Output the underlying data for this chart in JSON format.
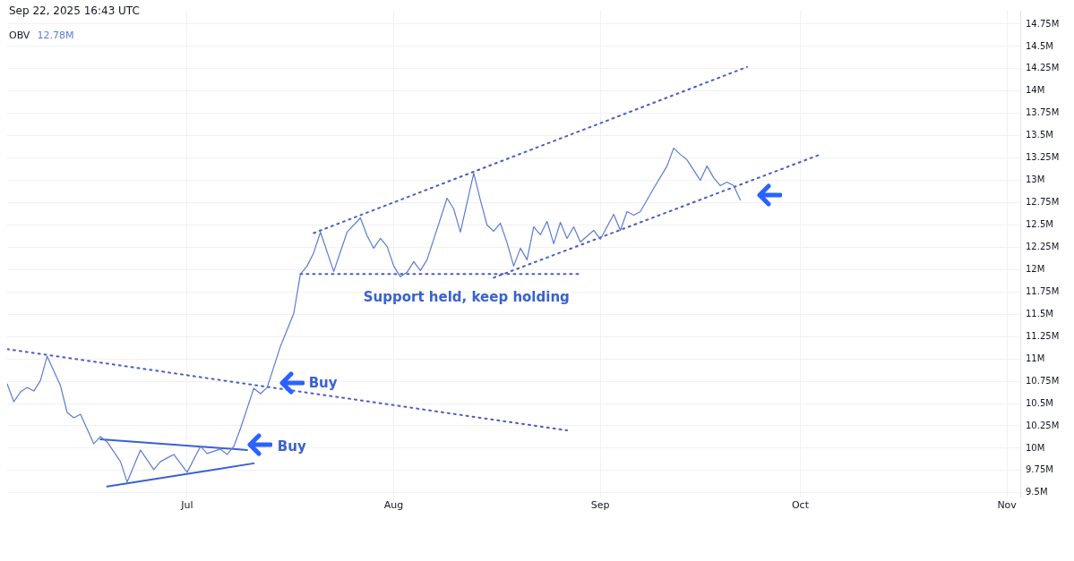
{
  "chart_data": {
    "type": "line",
    "title": "Sep 22, 2025 16:43 UTC",
    "xlim": [
      "2025-06-04",
      "2025-11-03"
    ],
    "xticks": [
      {
        "value": "2025-07-01",
        "label": "Jul"
      },
      {
        "value": "2025-08-01",
        "label": "Aug"
      },
      {
        "value": "2025-09-01",
        "label": "Sep"
      },
      {
        "value": "2025-10-01",
        "label": "Oct"
      },
      {
        "value": "2025-11-01",
        "label": "Nov"
      }
    ],
    "ylim": [
      9.45,
      14.9
    ],
    "yticks": [
      {
        "value": 9.5,
        "label": "9.5M"
      },
      {
        "value": 9.75,
        "label": "9.75M"
      },
      {
        "value": 10,
        "label": "10M"
      },
      {
        "value": 10.25,
        "label": "10.25M"
      },
      {
        "value": 10.5,
        "label": "10.5M"
      },
      {
        "value": 10.75,
        "label": "10.75M"
      },
      {
        "value": 11,
        "label": "11M"
      },
      {
        "value": 11.25,
        "label": "11.25M"
      },
      {
        "value": 11.5,
        "label": "11.5M"
      },
      {
        "value": 11.75,
        "label": "11.75M"
      },
      {
        "value": 12,
        "label": "12M"
      },
      {
        "value": 12.25,
        "label": "12.25M"
      },
      {
        "value": 12.5,
        "label": "12.5M"
      },
      {
        "value": 12.75,
        "label": "12.75M"
      },
      {
        "value": 13,
        "label": "13M"
      },
      {
        "value": 13.25,
        "label": "13.25M"
      },
      {
        "value": 13.5,
        "label": "13.5M"
      },
      {
        "value": 13.75,
        "label": "13.75M"
      },
      {
        "value": 14,
        "label": "14M"
      },
      {
        "value": 14.25,
        "label": "14.25M"
      },
      {
        "value": 14.5,
        "label": "14.5M"
      },
      {
        "value": 14.75,
        "label": "14.75M"
      }
    ],
    "grid": true,
    "legend": "top left",
    "marker": "none",
    "line_style": "solid",
    "series": [
      {
        "name": "OBV",
        "color": "#5b7bd5",
        "x": [
          "2025-06-04",
          "2025-06-05",
          "2025-06-06",
          "2025-06-07",
          "2025-06-08",
          "2025-06-09",
          "2025-06-10",
          "2025-06-12",
          "2025-06-13",
          "2025-06-14",
          "2025-06-15",
          "2025-06-17",
          "2025-06-18",
          "2025-06-19",
          "2025-06-21",
          "2025-06-22",
          "2025-06-24",
          "2025-06-26",
          "2025-06-27",
          "2025-06-29",
          "2025-07-01",
          "2025-07-03",
          "2025-07-04",
          "2025-07-06",
          "2025-07-07",
          "2025-07-08",
          "2025-07-09",
          "2025-07-11",
          "2025-07-12",
          "2025-07-13",
          "2025-07-14",
          "2025-07-15",
          "2025-07-17",
          "2025-07-18",
          "2025-07-19",
          "2025-07-20",
          "2025-07-21",
          "2025-07-23",
          "2025-07-25",
          "2025-07-27",
          "2025-07-28",
          "2025-07-29",
          "2025-07-30",
          "2025-07-31",
          "2025-08-01",
          "2025-08-02",
          "2025-08-03",
          "2025-08-04",
          "2025-08-05",
          "2025-08-06",
          "2025-08-07",
          "2025-08-09",
          "2025-08-10",
          "2025-08-11",
          "2025-08-13",
          "2025-08-14",
          "2025-08-15",
          "2025-08-16",
          "2025-08-17",
          "2025-08-18",
          "2025-08-19",
          "2025-08-20",
          "2025-08-21",
          "2025-08-22",
          "2025-08-23",
          "2025-08-24",
          "2025-08-25",
          "2025-08-26",
          "2025-08-27",
          "2025-08-28",
          "2025-08-29",
          "2025-08-31",
          "2025-09-01",
          "2025-09-03",
          "2025-09-04",
          "2025-09-05",
          "2025-09-06",
          "2025-09-07",
          "2025-09-09",
          "2025-09-11",
          "2025-09-12",
          "2025-09-13",
          "2025-09-14",
          "2025-09-16",
          "2025-09-17",
          "2025-09-18",
          "2025-09-19",
          "2025-09-20",
          "2025-09-21",
          "2025-09-22"
        ],
        "values": [
          10.72,
          10.52,
          10.63,
          10.68,
          10.64,
          10.76,
          11.03,
          10.7,
          10.4,
          10.34,
          10.38,
          10.05,
          10.13,
          10.07,
          9.85,
          9.62,
          9.98,
          9.76,
          9.85,
          9.93,
          9.73,
          10.02,
          9.94,
          9.99,
          9.93,
          10.02,
          10.22,
          10.67,
          10.61,
          10.68,
          10.91,
          11.14,
          11.51,
          11.95,
          12.04,
          12.19,
          12.42,
          11.98,
          12.42,
          12.58,
          12.38,
          12.24,
          12.35,
          12.26,
          12.04,
          11.92,
          11.97,
          12.09,
          11.99,
          12.11,
          12.34,
          12.8,
          12.68,
          12.42,
          13.08,
          12.78,
          12.5,
          12.43,
          12.52,
          12.3,
          12.04,
          12.24,
          12.11,
          12.48,
          12.39,
          12.54,
          12.29,
          12.53,
          12.35,
          12.48,
          12.31,
          12.44,
          12.34,
          12.62,
          12.44,
          12.65,
          12.61,
          12.65,
          12.91,
          13.16,
          13.36,
          13.29,
          13.23,
          13.0,
          13.16,
          13.03,
          12.94,
          12.98,
          12.94,
          12.78
        ]
      },
      {
        "color": "#4a5cc4",
        "line_style": "dotted",
        "x": [
          "2025-06-04",
          "2025-08-27"
        ],
        "values": [
          11.11,
          10.2
        ]
      },
      {
        "color": "#4a5cc4",
        "line_style": "dotted",
        "x": [
          "2025-07-18",
          "2025-08-29"
        ],
        "values": [
          11.95,
          11.95
        ]
      },
      {
        "color": "#4a5cc4",
        "line_style": "dotted",
        "x": [
          "2025-07-20",
          "2025-09-23"
        ],
        "values": [
          12.41,
          14.27
        ]
      },
      {
        "color": "#4a5cc4",
        "line_style": "dotted",
        "x": [
          "2025-08-16",
          "2025-10-04"
        ],
        "values": [
          11.91,
          13.29
        ]
      },
      {
        "color": "#3b5fd6",
        "line_style": "solid",
        "x": [
          "2025-06-18",
          "2025-07-10"
        ],
        "values": [
          10.1,
          9.98
        ]
      },
      {
        "color": "#3b5fd6",
        "line_style": "solid",
        "x": [
          "2025-06-19",
          "2025-07-11"
        ],
        "values": [
          9.57,
          9.83
        ]
      }
    ],
    "annotations": [
      "12.78M",
      {
        "text": "Buy",
        "x": "2025-07-14",
        "y": 10.72
      },
      {
        "text": "Buy",
        "x": "2025-07-10",
        "y": 10.03
      },
      {
        "text": "Support held, keep holding",
        "x": "2025-07-28",
        "y": 11.95
      }
    ]
  }
}
